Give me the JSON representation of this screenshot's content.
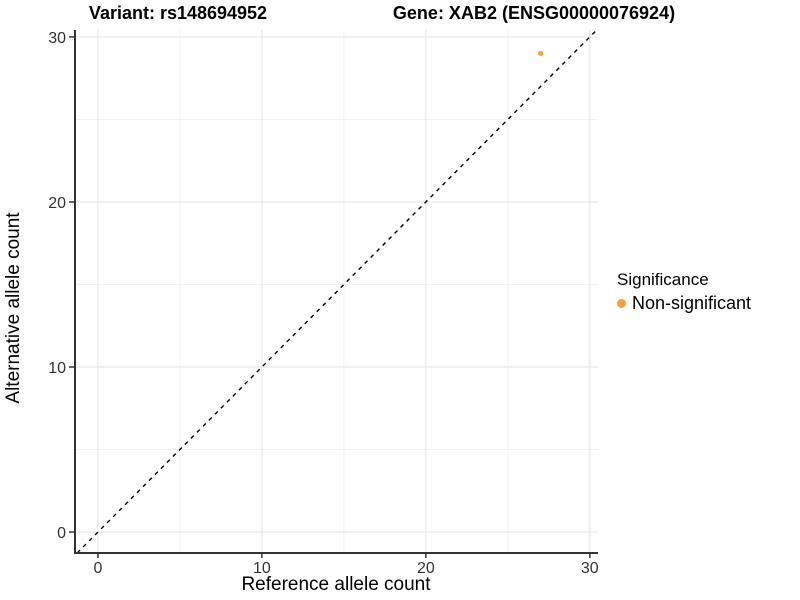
{
  "figure": {
    "title_left": "Variant: rs148694952",
    "title_right": "Gene: XAB2 (ENSG00000076924)"
  },
  "axes": {
    "x_title": "Reference allele count",
    "y_title": "Alternative allele count"
  },
  "legend": {
    "title": "Significance",
    "items": [
      {
        "label": "Non-significant",
        "color": "#F9A23C"
      }
    ]
  },
  "chart_data": {
    "type": "scatter",
    "title": "Variant: rs148694952 | Gene: XAB2 (ENSG00000076924)",
    "xlabel": "Reference allele count",
    "ylabel": "Alternative allele count",
    "xlim": [
      -1.4,
      30.5
    ],
    "ylim": [
      -1.27,
      30.42
    ],
    "x_ticks": [
      0,
      10,
      20,
      30
    ],
    "y_ticks": [
      0,
      10,
      20,
      30
    ],
    "x_minor_ticks": [
      5,
      15,
      25
    ],
    "y_minor_ticks": [
      5,
      15,
      25
    ],
    "grid": "on",
    "legend_title": "Significance",
    "legend_position": "right",
    "reference_line": {
      "kind": "identity",
      "equation": "y = x",
      "style": "dashed",
      "color": "#000000"
    },
    "series": [
      {
        "name": "Non-significant",
        "color": "#F9A23C",
        "marker": "circle",
        "points": [
          {
            "x": 27,
            "y": 29
          }
        ]
      }
    ]
  },
  "style": {
    "background": "#FFFFFF",
    "grid_major_color": "#E7E7E7",
    "grid_minor_color": "#F2F2F2",
    "axis_line_color": "#333333",
    "tick_label_color": "#333333"
  }
}
